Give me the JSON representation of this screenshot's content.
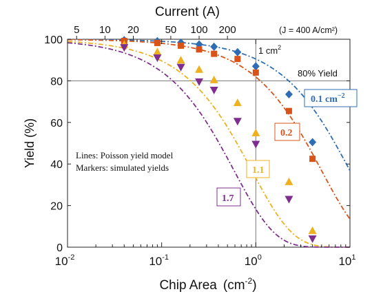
{
  "chart_data": {
    "type": "scatter",
    "top_axis_title": "Current (A)",
    "top_axis_ticks": [
      {
        "label": "5",
        "area": 0.0125
      },
      {
        "label": "10",
        "area": 0.025
      },
      {
        "label": "20",
        "area": 0.05
      },
      {
        "label": "50",
        "area": 0.125
      },
      {
        "label": "100",
        "area": 0.25
      },
      {
        "label": "200",
        "area": 0.5
      }
    ],
    "top_axis_note": "(J =   400 A/cm²)",
    "xlabel": "Chip Area",
    "xunit": "(cm",
    "xunit_exp": "-2",
    "xunit_close": ")",
    "ylabel": "Yield (%)",
    "xscale": "log",
    "xlim": [
      0.01,
      10
    ],
    "ylim": [
      0,
      100
    ],
    "x_ticks": [
      {
        "label": "10",
        "exp": "-2",
        "value": 0.01
      },
      {
        "label": "10",
        "exp": "-1",
        "value": 0.1
      },
      {
        "label": "10",
        "exp": "0",
        "value": 1
      },
      {
        "label": "10",
        "exp": "1",
        "value": 10
      }
    ],
    "y_ticks": [
      0,
      20,
      40,
      60,
      80,
      100
    ],
    "reference_lines": {
      "area_value": 1,
      "area_label": "1 cm",
      "area_label_exp": "2",
      "yield_value": 80,
      "yield_label": "80% Yield"
    },
    "note_lines": [
      "Lines: Poisson yield model",
      "Markers: simulated yields"
    ],
    "series": [
      {
        "name": "0.1 cm",
        "name_exp": "−2",
        "defect_density": 0.1,
        "color": "#2e6db4",
        "marker": "diamond",
        "points": [
          [
            0.04,
            99.6
          ],
          [
            0.09,
            99.1
          ],
          [
            0.16,
            98.4
          ],
          [
            0.25,
            97.5
          ],
          [
            0.36,
            96.4
          ],
          [
            0.64,
            93.8
          ],
          [
            1.0,
            87.0
          ],
          [
            2.25,
            73.5
          ],
          [
            4.0,
            50.5
          ]
        ]
      },
      {
        "name": "0.2",
        "defect_density": 0.2,
        "color": "#d95319",
        "marker": "square",
        "points": [
          [
            0.04,
            99.2
          ],
          [
            0.09,
            98.2
          ],
          [
            0.16,
            96.9
          ],
          [
            0.25,
            95.1
          ],
          [
            0.36,
            93.0
          ],
          [
            0.64,
            90.5
          ],
          [
            1.0,
            84.0
          ],
          [
            2.25,
            65.5
          ],
          [
            4.0,
            42.5
          ]
        ]
      },
      {
        "name": "1.1",
        "defect_density": 1.1,
        "color": "#edb120",
        "marker": "triangle-up",
        "points": [
          [
            0.04,
            97.5
          ],
          [
            0.09,
            94.0
          ],
          [
            0.16,
            90.0
          ],
          [
            0.25,
            85.5
          ],
          [
            0.36,
            80.5
          ],
          [
            0.64,
            69.5
          ],
          [
            1.0,
            55.0
          ],
          [
            2.25,
            31.5
          ],
          [
            4.0,
            8.0
          ]
        ]
      },
      {
        "name": "1.7",
        "defect_density": 1.7,
        "color": "#7e2f8e",
        "marker": "triangle-down",
        "points": [
          [
            0.04,
            96.0
          ],
          [
            0.09,
            91.0
          ],
          [
            0.16,
            86.5
          ],
          [
            0.25,
            79.5
          ],
          [
            0.36,
            75.5
          ],
          [
            0.64,
            60.5
          ],
          [
            1.0,
            49.5
          ],
          [
            2.25,
            23.0
          ],
          [
            4.0,
            4.0
          ]
        ]
      }
    ]
  }
}
